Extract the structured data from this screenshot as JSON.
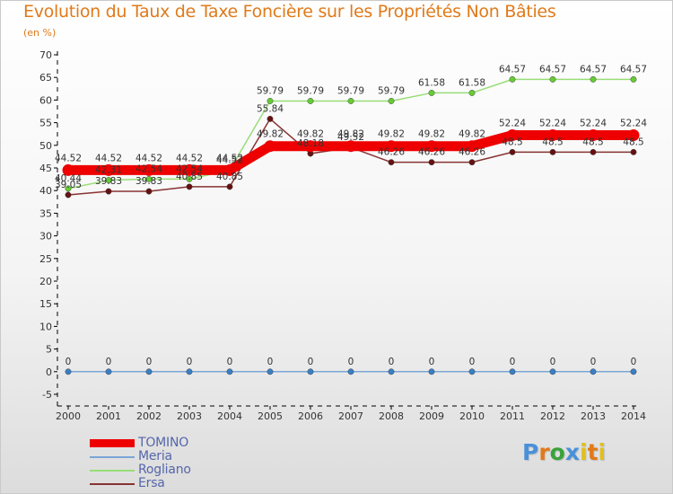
{
  "header": {
    "title": "Evolution du Taux de Taxe Foncière sur les Propriétés Non Bâties",
    "subtitle": "(en %)"
  },
  "logo": {
    "text": "Proxiti",
    "colors": [
      "#4a90d9",
      "#e07a1a",
      "#3aa23a",
      "#4a90d9",
      "#e0c020",
      "#e07a1a",
      "#e0c020"
    ]
  },
  "chart_data": {
    "type": "line",
    "title": "Evolution du Taux de Taxe Foncière sur les Propriétés Non Bâties",
    "ylabel": "(en %)",
    "xlabel": "",
    "ylim": [
      -5,
      70
    ],
    "ytick_step": 5,
    "grid": false,
    "legend_position": "bottom-left",
    "x": [
      "2000",
      "2001",
      "2002",
      "2003",
      "2004",
      "2005",
      "2006",
      "2007",
      "2008",
      "2009",
      "2010",
      "2011",
      "2012",
      "2013",
      "2014"
    ],
    "series": [
      {
        "name": "TOMINO",
        "color": "#ee0000",
        "marker_color": "#ee0000",
        "emphasis": true,
        "values": [
          44.52,
          44.52,
          44.52,
          44.52,
          44.52,
          49.82,
          49.82,
          49.82,
          49.82,
          49.82,
          49.82,
          52.24,
          52.24,
          52.24,
          52.24
        ],
        "labels": [
          "44.52",
          "44.52",
          "44.52",
          "44.52",
          "44.52",
          "49.82",
          "49.82",
          "49.82",
          "49.82",
          "49.82",
          "49.82",
          "52.24",
          "52.24",
          "52.24",
          "52.24"
        ]
      },
      {
        "name": "Meria",
        "color": "#7aa6d6",
        "marker_color": "#3a7fc4",
        "emphasis": false,
        "values": [
          0,
          0,
          0,
          0,
          0,
          0,
          0,
          0,
          0,
          0,
          0,
          0,
          0,
          0,
          0
        ],
        "labels": [
          "0",
          "0",
          "0",
          "0",
          "0",
          "0",
          "0",
          "0",
          "0",
          "0",
          "0",
          "0",
          "0",
          "0",
          "0"
        ]
      },
      {
        "name": "Rogliano",
        "color": "#99dd77",
        "marker_color": "#66cc33",
        "emphasis": false,
        "values": [
          40.44,
          42.31,
          42.54,
          42.54,
          44.52,
          59.79,
          59.79,
          59.79,
          59.79,
          61.58,
          61.58,
          64.57,
          64.57,
          64.57,
          64.57
        ],
        "labels": [
          "40.44",
          "42.31",
          "42.54",
          "42.54",
          "44.52",
          "59.79",
          "59.79",
          "59.79",
          "59.79",
          "61.58",
          "61.58",
          "64.57",
          "64.57",
          "64.57",
          "64.57"
        ]
      },
      {
        "name": "Ersa",
        "color": "#883333",
        "marker_color": "#661111",
        "emphasis": false,
        "values": [
          39.05,
          39.83,
          39.83,
          40.85,
          40.85,
          55.84,
          48.18,
          49.52,
          46.26,
          46.26,
          46.26,
          48.5,
          48.5,
          48.5,
          48.5
        ],
        "labels": [
          "39.05",
          "39.83",
          "39.83",
          "40.85",
          "40.85",
          "55.84",
          "48.18",
          "49.52",
          "46.26",
          "46.26",
          "46.26",
          "48.5",
          "48.5",
          "48.5",
          "48.5"
        ]
      }
    ]
  }
}
